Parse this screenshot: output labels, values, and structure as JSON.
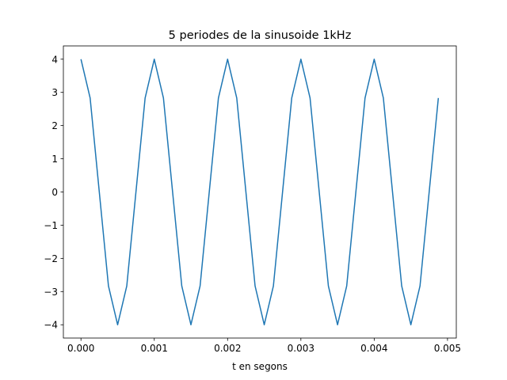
{
  "chart_data": {
    "type": "line",
    "title": "5 periodes de la sinusoide 1kHz",
    "xlabel": "t en segons",
    "ylabel": "",
    "xlim": [
      -0.00024,
      0.00512
    ],
    "ylim": [
      -4.4,
      4.4
    ],
    "xticks": [
      0.0,
      0.001,
      0.002,
      0.003,
      0.004,
      0.005
    ],
    "xtick_labels": [
      "0.000",
      "0.001",
      "0.002",
      "0.003",
      "0.004",
      "0.005"
    ],
    "yticks": [
      -4,
      -3,
      -2,
      -1,
      0,
      1,
      2,
      3,
      4
    ],
    "ytick_labels": [
      "−4",
      "−3",
      "−2",
      "−1",
      "0",
      "1",
      "2",
      "3",
      "4"
    ],
    "grid": false,
    "series": [
      {
        "color": "#1f77b4",
        "x": [
          0.0,
          0.000125,
          0.00025,
          0.000375,
          0.0005,
          0.000625,
          0.00075,
          0.000875,
          0.001,
          0.001125,
          0.00125,
          0.001375,
          0.0015,
          0.001625,
          0.00175,
          0.001875,
          0.002,
          0.002125,
          0.00225,
          0.002375,
          0.0025,
          0.002625,
          0.00275,
          0.002875,
          0.003,
          0.003125,
          0.00325,
          0.003375,
          0.0035,
          0.003625,
          0.00375,
          0.003875,
          0.004,
          0.004125,
          0.00425,
          0.004375,
          0.0045,
          0.004625,
          0.00475,
          0.004875
        ],
        "values": [
          4.0,
          2.83,
          0.0,
          -2.83,
          -4.0,
          -2.83,
          0.0,
          2.83,
          4.0,
          2.83,
          0.0,
          -2.83,
          -4.0,
          -2.83,
          0.0,
          2.83,
          4.0,
          2.83,
          0.0,
          -2.83,
          -4.0,
          -2.83,
          0.0,
          2.83,
          4.0,
          2.83,
          0.0,
          -2.83,
          -4.0,
          -2.83,
          0.0,
          2.83,
          4.0,
          2.83,
          0.0,
          -2.83,
          -4.0,
          -2.83,
          0.0,
          2.83
        ]
      }
    ]
  }
}
